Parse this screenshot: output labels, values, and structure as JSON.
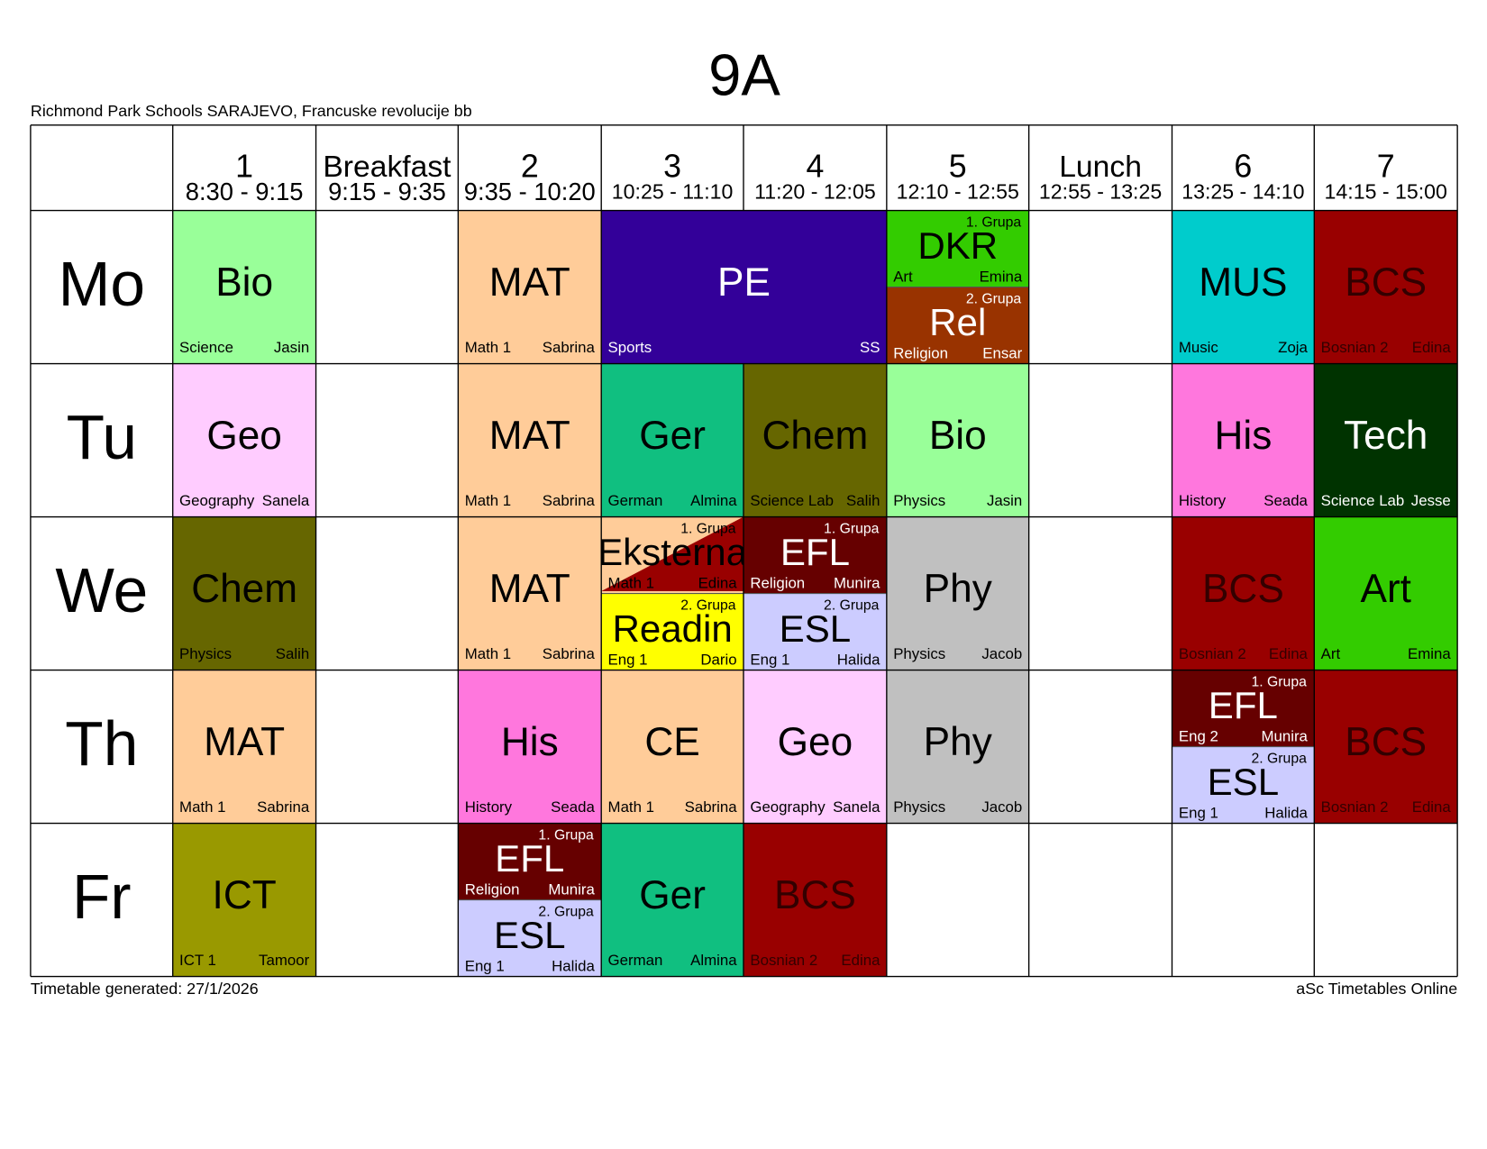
{
  "title": "9A",
  "school": "Richmond Park Schools SARAJEVO, Francuske revolucije bb",
  "footer_left": "Timetable generated: 27/1/2026",
  "footer_right": "aSc Timetables Online",
  "periods": [
    {
      "label": "1",
      "time": "8:30 - 9:15"
    },
    {
      "label": "Breakfast",
      "time": "9:15 - 9:35"
    },
    {
      "label": "2",
      "time": "9:35 - 10:20"
    },
    {
      "label": "3",
      "time": "10:25 - 11:10"
    },
    {
      "label": "4",
      "time": "11:20 - 12:05"
    },
    {
      "label": "5",
      "time": "12:10 - 12:55"
    },
    {
      "label": "Lunch",
      "time": "12:55 - 13:25"
    },
    {
      "label": "6",
      "time": "13:25 - 14:10"
    },
    {
      "label": "7",
      "time": "14:15 - 15:00"
    }
  ],
  "days": [
    {
      "name": "Mo",
      "cells": [
        [
          {
            "subject": "Bio",
            "room": "Science",
            "teacher": "Jasin",
            "color": "#99ff99",
            "text": "#000000"
          }
        ],
        null,
        [
          {
            "subject": "MAT",
            "room": "Math 1",
            "teacher": "Sabrina",
            "color": "#ffcc99",
            "text": "#000000"
          }
        ],
        [
          {
            "subject": "PE",
            "room": "Sports",
            "teacher": "SS",
            "color": "#330099",
            "text": "#ffffff"
          }
        ],
        null,
        [
          {
            "group": "1. Grupa",
            "subject": "DKR",
            "room": "Art",
            "teacher": "Emina",
            "color": "#33cc00",
            "text": "#000000"
          },
          {
            "group": "2. Grupa",
            "subject": "Rel",
            "room": "Religion",
            "teacher": "Ensar",
            "color": "#993300",
            "text": "#ffffff"
          }
        ],
        null,
        [
          {
            "subject": "MUS",
            "room": "Music",
            "teacher": "Zoja",
            "color": "#00cccc",
            "text": "#000000"
          }
        ],
        [
          {
            "subject": "BCS",
            "room": "Bosnian 2",
            "teacher": "Edina",
            "color": "#990000",
            "text": "#330000"
          }
        ]
      ]
    },
    {
      "name": "Tu",
      "cells": [
        [
          {
            "subject": "Geo",
            "room": "Geography",
            "teacher": "Sanela",
            "color": "#ffccff",
            "text": "#000000"
          }
        ],
        null,
        [
          {
            "subject": "MAT",
            "room": "Math 1",
            "teacher": "Sabrina",
            "color": "#ffcc99",
            "text": "#000000"
          }
        ],
        [
          {
            "subject": "Ger",
            "room": "German",
            "teacher": "Almina",
            "color": "#10bf80",
            "text": "#000000"
          }
        ],
        [
          {
            "subject": "Chem",
            "room": "Science Lab",
            "teacher": "Salih",
            "color": "#666600",
            "text": "#000000"
          }
        ],
        [
          {
            "subject": "Bio",
            "room": "Physics",
            "teacher": "Jasin",
            "color": "#99ff99",
            "text": "#000000"
          }
        ],
        null,
        [
          {
            "subject": "His",
            "room": "History",
            "teacher": "Seada",
            "color": "#ff77dd",
            "text": "#000000"
          }
        ],
        [
          {
            "subject": "Tech",
            "room": "Science Lab",
            "teacher": "Jesse",
            "color": "#003300",
            "text": "#ffffff"
          }
        ]
      ]
    },
    {
      "name": "We",
      "cells": [
        [
          {
            "subject": "Chem",
            "room": "Physics",
            "teacher": "Salih",
            "color": "#666600",
            "text": "#000000"
          }
        ],
        null,
        [
          {
            "subject": "MAT",
            "room": "Math 1",
            "teacher": "Sabrina",
            "color": "#ffcc99",
            "text": "#000000"
          }
        ],
        [
          {
            "group": "1. Grupa",
            "subject": "Eksterna",
            "room": "Math 1",
            "teacher": "Edina",
            "color": "#ffcc99",
            "color2": "#990000",
            "text": "#000000"
          },
          {
            "group": "2. Grupa",
            "subject": "Readin",
            "room": "Eng 1",
            "teacher": "Dario",
            "color": "#ffff00",
            "text": "#000000"
          }
        ],
        [
          {
            "group": "1. Grupa",
            "subject": "EFL",
            "room": "Religion",
            "teacher": "Munira",
            "color": "#660000",
            "text": "#ffffff"
          },
          {
            "group": "2. Grupa",
            "subject": "ESL",
            "room": "Eng 1",
            "teacher": "Halida",
            "color": "#ccccff",
            "text": "#000000"
          }
        ],
        [
          {
            "subject": "Phy",
            "room": "Physics",
            "teacher": "Jacob",
            "color": "#c0c0c0",
            "text": "#000000"
          }
        ],
        null,
        [
          {
            "subject": "BCS",
            "room": "Bosnian 2",
            "teacher": "Edina",
            "color": "#990000",
            "text": "#330000"
          }
        ],
        [
          {
            "subject": "Art",
            "room": "Art",
            "teacher": "Emina",
            "color": "#33cc00",
            "text": "#000000"
          }
        ]
      ]
    },
    {
      "name": "Th",
      "cells": [
        [
          {
            "subject": "MAT",
            "room": "Math 1",
            "teacher": "Sabrina",
            "color": "#ffcc99",
            "text": "#000000"
          }
        ],
        null,
        [
          {
            "subject": "His",
            "room": "History",
            "teacher": "Seada",
            "color": "#ff77dd",
            "text": "#000000"
          }
        ],
        [
          {
            "subject": "CE",
            "room": "Math 1",
            "teacher": "Sabrina",
            "color": "#ffcc99",
            "text": "#000000"
          }
        ],
        [
          {
            "subject": "Geo",
            "room": "Geography",
            "teacher": "Sanela",
            "color": "#ffccff",
            "text": "#000000"
          }
        ],
        [
          {
            "subject": "Phy",
            "room": "Physics",
            "teacher": "Jacob",
            "color": "#c0c0c0",
            "text": "#000000"
          }
        ],
        null,
        [
          {
            "group": "1. Grupa",
            "subject": "EFL",
            "room": "Eng 2",
            "teacher": "Munira",
            "color": "#660000",
            "text": "#ffffff"
          },
          {
            "group": "2. Grupa",
            "subject": "ESL",
            "room": "Eng 1",
            "teacher": "Halida",
            "color": "#ccccff",
            "text": "#000000"
          }
        ],
        [
          {
            "subject": "BCS",
            "room": "Bosnian 2",
            "teacher": "Edina",
            "color": "#990000",
            "text": "#330000"
          }
        ]
      ]
    },
    {
      "name": "Fr",
      "cells": [
        [
          {
            "subject": "ICT",
            "room": "ICT 1",
            "teacher": "Tamoor",
            "color": "#999900",
            "text": "#000000"
          }
        ],
        null,
        [
          {
            "group": "1. Grupa",
            "subject": "EFL",
            "room": "Religion",
            "teacher": "Munira",
            "color": "#660000",
            "text": "#ffffff"
          },
          {
            "group": "2. Grupa",
            "subject": "ESL",
            "room": "Eng 1",
            "teacher": "Halida",
            "color": "#ccccff",
            "text": "#000000"
          }
        ],
        [
          {
            "subject": "Ger",
            "room": "German",
            "teacher": "Almina",
            "color": "#10bf80",
            "text": "#000000"
          }
        ],
        [
          {
            "subject": "BCS",
            "room": "Bosnian 2",
            "teacher": "Edina",
            "color": "#990000",
            "text": "#330000"
          }
        ],
        null,
        null,
        null,
        null
      ]
    }
  ]
}
